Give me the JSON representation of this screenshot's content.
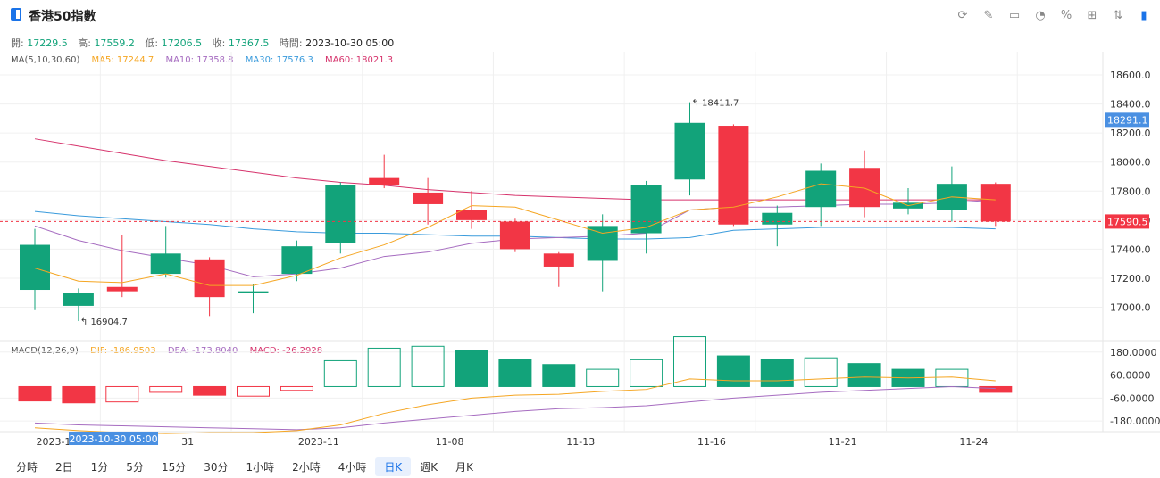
{
  "header": {
    "title": "香港50指數",
    "tools": [
      "refresh-icon",
      "edit-icon",
      "image-icon",
      "pie-icon",
      "percent-icon",
      "grid-icon",
      "sort-icon",
      "layout-icon"
    ]
  },
  "ohlc": {
    "open_label": "開:",
    "open": "17229.5",
    "high_label": "高:",
    "high": "17559.2",
    "low_label": "低:",
    "low": "17206.5",
    "close_label": "收:",
    "close": "17367.5",
    "time_label": "時間:",
    "time": "2023-10-30 05:00"
  },
  "ma_legend": {
    "name": "MA(5,10,30,60)",
    "ma5": "MA5: 17244.7",
    "ma10": "MA10: 17358.8",
    "ma30": "MA30: 17576.3",
    "ma60": "MA60: 18021.3"
  },
  "macd_legend": {
    "name": "MACD(12,26,9)",
    "dif": "DIF: -186.9503",
    "dea": "DEA: -173.8040",
    "macd": "MACD: -26.2928"
  },
  "periods": [
    "分時",
    "2日",
    "1分",
    "5分",
    "15分",
    "30分",
    "1小時",
    "2小時",
    "4小時",
    "日K",
    "週K",
    "月K"
  ],
  "active_period": "日K",
  "colors": {
    "up": "#12a37a",
    "down": "#f23645",
    "ma5": "#f5a623",
    "ma10": "#a66cc0",
    "ma30": "#3a9bdc",
    "ma60": "#d6336c"
  },
  "chart_data": {
    "type": "candlestick",
    "x_labels": [
      "2023-10",
      "31",
      "2023-11",
      "11-08",
      "11-13",
      "11-16",
      "11-21",
      "11-24"
    ],
    "x_label_index": [
      2,
      5,
      8,
      11,
      14,
      17,
      20,
      23
    ],
    "crosshair_x_label": "2023-10-30 05:00",
    "y_ticks": [
      17000,
      17200,
      17400,
      17600,
      17800,
      18000,
      18200,
      18400,
      18600
    ],
    "y_tick_labels": [
      "17000.0",
      "17200.0",
      "17400.0",
      "17600.0",
      "17800.0",
      "18000.0",
      "18200.0",
      "18400.0",
      "18600.0"
    ],
    "ylim": [
      16770,
      18760
    ],
    "candles": [
      {
        "o": 17120,
        "h": 17540,
        "l": 16980,
        "c": 17430
      },
      {
        "o": 17010,
        "h": 17130,
        "l": 16905,
        "c": 17100
      },
      {
        "o": 17140,
        "h": 17500,
        "l": 17070,
        "c": 17110
      },
      {
        "o": 17230,
        "h": 17560,
        "l": 17205,
        "c": 17370
      },
      {
        "o": 17330,
        "h": 17345,
        "l": 16940,
        "c": 17070
      },
      {
        "o": 17100,
        "h": 17160,
        "l": 16960,
        "c": 17110
      },
      {
        "o": 17230,
        "h": 17460,
        "l": 17180,
        "c": 17420
      },
      {
        "o": 17440,
        "h": 17860,
        "l": 17370,
        "c": 17840
      },
      {
        "o": 17890,
        "h": 18050,
        "l": 17820,
        "c": 17840
      },
      {
        "o": 17790,
        "h": 17890,
        "l": 17570,
        "c": 17710
      },
      {
        "o": 17670,
        "h": 17800,
        "l": 17540,
        "c": 17600
      },
      {
        "o": 17590,
        "h": 17610,
        "l": 17380,
        "c": 17400
      },
      {
        "o": 17370,
        "h": 17380,
        "l": 17140,
        "c": 17280
      },
      {
        "o": 17320,
        "h": 17640,
        "l": 17110,
        "c": 17560
      },
      {
        "o": 17510,
        "h": 17870,
        "l": 17370,
        "c": 17840
      },
      {
        "o": 17880,
        "h": 18412,
        "l": 17770,
        "c": 18270
      },
      {
        "o": 18250,
        "h": 18260,
        "l": 17560,
        "c": 17570
      },
      {
        "o": 17570,
        "h": 17700,
        "l": 17420,
        "c": 17650
      },
      {
        "o": 17690,
        "h": 17990,
        "l": 17560,
        "c": 17940
      },
      {
        "o": 17960,
        "h": 18080,
        "l": 17620,
        "c": 17690
      },
      {
        "o": 17680,
        "h": 17820,
        "l": 17640,
        "c": 17720
      },
      {
        "o": 17670,
        "h": 17970,
        "l": 17590,
        "c": 17850
      },
      {
        "o": 17850,
        "h": 17860,
        "l": 17560,
        "c": 17591
      }
    ],
    "annotations": [
      {
        "index": 15,
        "value": "18411.7",
        "price": 18412
      },
      {
        "index": 1,
        "value": "16904.7",
        "price": 16905
      }
    ],
    "last_price": {
      "value": 17590.5,
      "label": "17590.5"
    },
    "cursor_price": {
      "value": 18291.1,
      "label": "18291.1"
    },
    "ma5": [
      17270,
      17180,
      17170,
      17230,
      17150,
      17150,
      17220,
      17340,
      17430,
      17550,
      17700,
      17690,
      17600,
      17510,
      17550,
      17670,
      17690,
      17760,
      17850,
      17820,
      17700,
      17760,
      17740
    ],
    "ma10": [
      17560,
      17460,
      17390,
      17340,
      17290,
      17210,
      17230,
      17270,
      17350,
      17380,
      17440,
      17470,
      17480,
      17490,
      17510,
      17670,
      17690,
      17690,
      17700,
      17710,
      17710,
      17720,
      17740
    ],
    "ma30": [
      17660,
      17630,
      17610,
      17590,
      17570,
      17540,
      17520,
      17510,
      17510,
      17500,
      17490,
      17490,
      17480,
      17470,
      17470,
      17480,
      17530,
      17540,
      17550,
      17550,
      17550,
      17550,
      17540
    ],
    "ma60": [
      18160,
      18110,
      18060,
      18010,
      17970,
      17930,
      17890,
      17860,
      17840,
      17810,
      17790,
      17770,
      17760,
      17750,
      17740,
      17740,
      17740,
      17740,
      17740,
      17740,
      17740,
      17740,
      17740
    ],
    "macd_y_ticks": [
      180,
      60,
      -60,
      -180
    ],
    "macd_y_tick_labels": [
      "180.0000",
      "60.0000",
      "-60.0000",
      "-180.0000"
    ],
    "macd_ylim": [
      -235,
      230
    ],
    "macd_hist": [
      -75,
      -85,
      -80,
      -30,
      -45,
      -50,
      -20,
      135,
      200,
      210,
      190,
      140,
      115,
      90,
      140,
      260,
      160,
      140,
      150,
      120,
      90,
      90,
      -30
    ],
    "macd_hist_dir": [
      1,
      1,
      -1,
      -1,
      1,
      -1,
      -1,
      -1,
      -1,
      -1,
      1,
      1,
      1,
      -1,
      -1,
      -1,
      1,
      1,
      -1,
      1,
      1,
      -1,
      1
    ],
    "dif": [
      -215,
      -230,
      -240,
      -245,
      -240,
      -240,
      -230,
      -200,
      -140,
      -95,
      -60,
      -45,
      -40,
      -25,
      -15,
      40,
      30,
      30,
      40,
      50,
      45,
      50,
      30
    ],
    "dea": [
      -190,
      -200,
      -205,
      -210,
      -215,
      -220,
      -225,
      -215,
      -190,
      -170,
      -150,
      -130,
      -115,
      -110,
      -100,
      -80,
      -60,
      -45,
      -30,
      -20,
      -10,
      0,
      -10
    ]
  }
}
